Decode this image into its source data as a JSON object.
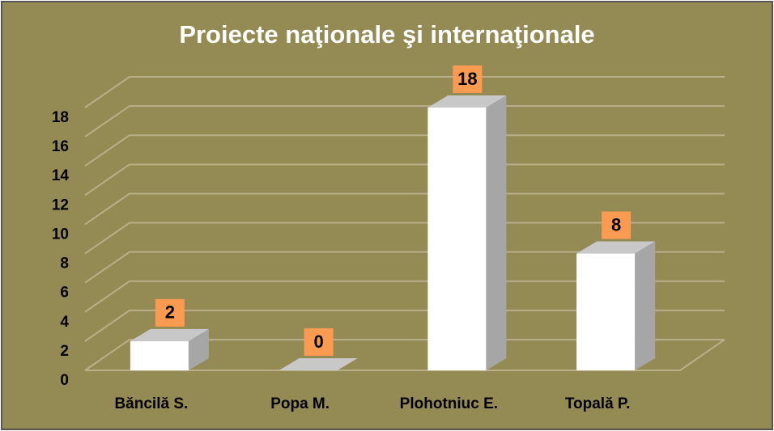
{
  "chart_data": {
    "type": "bar3d",
    "title": "Proiecte naţionale şi internaţionale",
    "categories": [
      "Băncilă S.",
      "Popa M.",
      "Plohotniuc E.",
      "Topală P."
    ],
    "values": [
      2,
      0,
      18,
      8
    ],
    "color": "#ffffff",
    "ylim": [
      0,
      18
    ],
    "yticks": [
      0,
      2,
      4,
      6,
      8,
      10,
      12,
      14,
      16,
      18
    ],
    "grid": true
  }
}
